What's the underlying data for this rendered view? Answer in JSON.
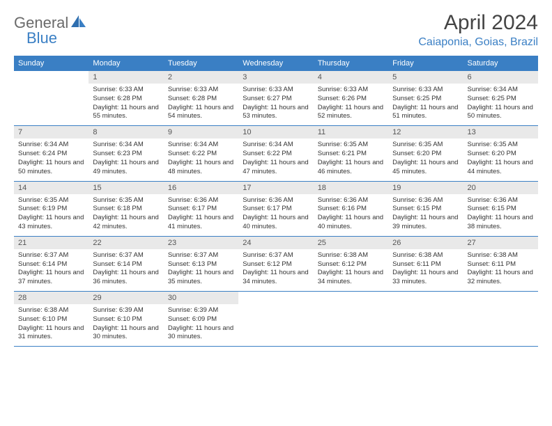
{
  "logo": {
    "text1": "General",
    "text2": "Blue"
  },
  "title": "April 2024",
  "location": "Caiaponia, Goias, Brazil",
  "colors": {
    "header_bg": "#3a7fc4",
    "header_fg": "#ffffff",
    "daynum_bg": "#e9e9e9",
    "rule": "#3a7fc4",
    "logo_gray": "#6a6a6a",
    "logo_blue": "#3a7fc4"
  },
  "weekdays": [
    "Sunday",
    "Monday",
    "Tuesday",
    "Wednesday",
    "Thursday",
    "Friday",
    "Saturday"
  ],
  "weeks": [
    [
      {
        "n": "",
        "sr": "",
        "ss": "",
        "dl": ""
      },
      {
        "n": "1",
        "sr": "Sunrise: 6:33 AM",
        "ss": "Sunset: 6:28 PM",
        "dl": "Daylight: 11 hours and 55 minutes."
      },
      {
        "n": "2",
        "sr": "Sunrise: 6:33 AM",
        "ss": "Sunset: 6:28 PM",
        "dl": "Daylight: 11 hours and 54 minutes."
      },
      {
        "n": "3",
        "sr": "Sunrise: 6:33 AM",
        "ss": "Sunset: 6:27 PM",
        "dl": "Daylight: 11 hours and 53 minutes."
      },
      {
        "n": "4",
        "sr": "Sunrise: 6:33 AM",
        "ss": "Sunset: 6:26 PM",
        "dl": "Daylight: 11 hours and 52 minutes."
      },
      {
        "n": "5",
        "sr": "Sunrise: 6:33 AM",
        "ss": "Sunset: 6:25 PM",
        "dl": "Daylight: 11 hours and 51 minutes."
      },
      {
        "n": "6",
        "sr": "Sunrise: 6:34 AM",
        "ss": "Sunset: 6:25 PM",
        "dl": "Daylight: 11 hours and 50 minutes."
      }
    ],
    [
      {
        "n": "7",
        "sr": "Sunrise: 6:34 AM",
        "ss": "Sunset: 6:24 PM",
        "dl": "Daylight: 11 hours and 50 minutes."
      },
      {
        "n": "8",
        "sr": "Sunrise: 6:34 AM",
        "ss": "Sunset: 6:23 PM",
        "dl": "Daylight: 11 hours and 49 minutes."
      },
      {
        "n": "9",
        "sr": "Sunrise: 6:34 AM",
        "ss": "Sunset: 6:22 PM",
        "dl": "Daylight: 11 hours and 48 minutes."
      },
      {
        "n": "10",
        "sr": "Sunrise: 6:34 AM",
        "ss": "Sunset: 6:22 PM",
        "dl": "Daylight: 11 hours and 47 minutes."
      },
      {
        "n": "11",
        "sr": "Sunrise: 6:35 AM",
        "ss": "Sunset: 6:21 PM",
        "dl": "Daylight: 11 hours and 46 minutes."
      },
      {
        "n": "12",
        "sr": "Sunrise: 6:35 AM",
        "ss": "Sunset: 6:20 PM",
        "dl": "Daylight: 11 hours and 45 minutes."
      },
      {
        "n": "13",
        "sr": "Sunrise: 6:35 AM",
        "ss": "Sunset: 6:20 PM",
        "dl": "Daylight: 11 hours and 44 minutes."
      }
    ],
    [
      {
        "n": "14",
        "sr": "Sunrise: 6:35 AM",
        "ss": "Sunset: 6:19 PM",
        "dl": "Daylight: 11 hours and 43 minutes."
      },
      {
        "n": "15",
        "sr": "Sunrise: 6:35 AM",
        "ss": "Sunset: 6:18 PM",
        "dl": "Daylight: 11 hours and 42 minutes."
      },
      {
        "n": "16",
        "sr": "Sunrise: 6:36 AM",
        "ss": "Sunset: 6:17 PM",
        "dl": "Daylight: 11 hours and 41 minutes."
      },
      {
        "n": "17",
        "sr": "Sunrise: 6:36 AM",
        "ss": "Sunset: 6:17 PM",
        "dl": "Daylight: 11 hours and 40 minutes."
      },
      {
        "n": "18",
        "sr": "Sunrise: 6:36 AM",
        "ss": "Sunset: 6:16 PM",
        "dl": "Daylight: 11 hours and 40 minutes."
      },
      {
        "n": "19",
        "sr": "Sunrise: 6:36 AM",
        "ss": "Sunset: 6:15 PM",
        "dl": "Daylight: 11 hours and 39 minutes."
      },
      {
        "n": "20",
        "sr": "Sunrise: 6:36 AM",
        "ss": "Sunset: 6:15 PM",
        "dl": "Daylight: 11 hours and 38 minutes."
      }
    ],
    [
      {
        "n": "21",
        "sr": "Sunrise: 6:37 AM",
        "ss": "Sunset: 6:14 PM",
        "dl": "Daylight: 11 hours and 37 minutes."
      },
      {
        "n": "22",
        "sr": "Sunrise: 6:37 AM",
        "ss": "Sunset: 6:14 PM",
        "dl": "Daylight: 11 hours and 36 minutes."
      },
      {
        "n": "23",
        "sr": "Sunrise: 6:37 AM",
        "ss": "Sunset: 6:13 PM",
        "dl": "Daylight: 11 hours and 35 minutes."
      },
      {
        "n": "24",
        "sr": "Sunrise: 6:37 AM",
        "ss": "Sunset: 6:12 PM",
        "dl": "Daylight: 11 hours and 34 minutes."
      },
      {
        "n": "25",
        "sr": "Sunrise: 6:38 AM",
        "ss": "Sunset: 6:12 PM",
        "dl": "Daylight: 11 hours and 34 minutes."
      },
      {
        "n": "26",
        "sr": "Sunrise: 6:38 AM",
        "ss": "Sunset: 6:11 PM",
        "dl": "Daylight: 11 hours and 33 minutes."
      },
      {
        "n": "27",
        "sr": "Sunrise: 6:38 AM",
        "ss": "Sunset: 6:11 PM",
        "dl": "Daylight: 11 hours and 32 minutes."
      }
    ],
    [
      {
        "n": "28",
        "sr": "Sunrise: 6:38 AM",
        "ss": "Sunset: 6:10 PM",
        "dl": "Daylight: 11 hours and 31 minutes."
      },
      {
        "n": "29",
        "sr": "Sunrise: 6:39 AM",
        "ss": "Sunset: 6:10 PM",
        "dl": "Daylight: 11 hours and 30 minutes."
      },
      {
        "n": "30",
        "sr": "Sunrise: 6:39 AM",
        "ss": "Sunset: 6:09 PM",
        "dl": "Daylight: 11 hours and 30 minutes."
      },
      {
        "n": "",
        "sr": "",
        "ss": "",
        "dl": ""
      },
      {
        "n": "",
        "sr": "",
        "ss": "",
        "dl": ""
      },
      {
        "n": "",
        "sr": "",
        "ss": "",
        "dl": ""
      },
      {
        "n": "",
        "sr": "",
        "ss": "",
        "dl": ""
      }
    ]
  ]
}
